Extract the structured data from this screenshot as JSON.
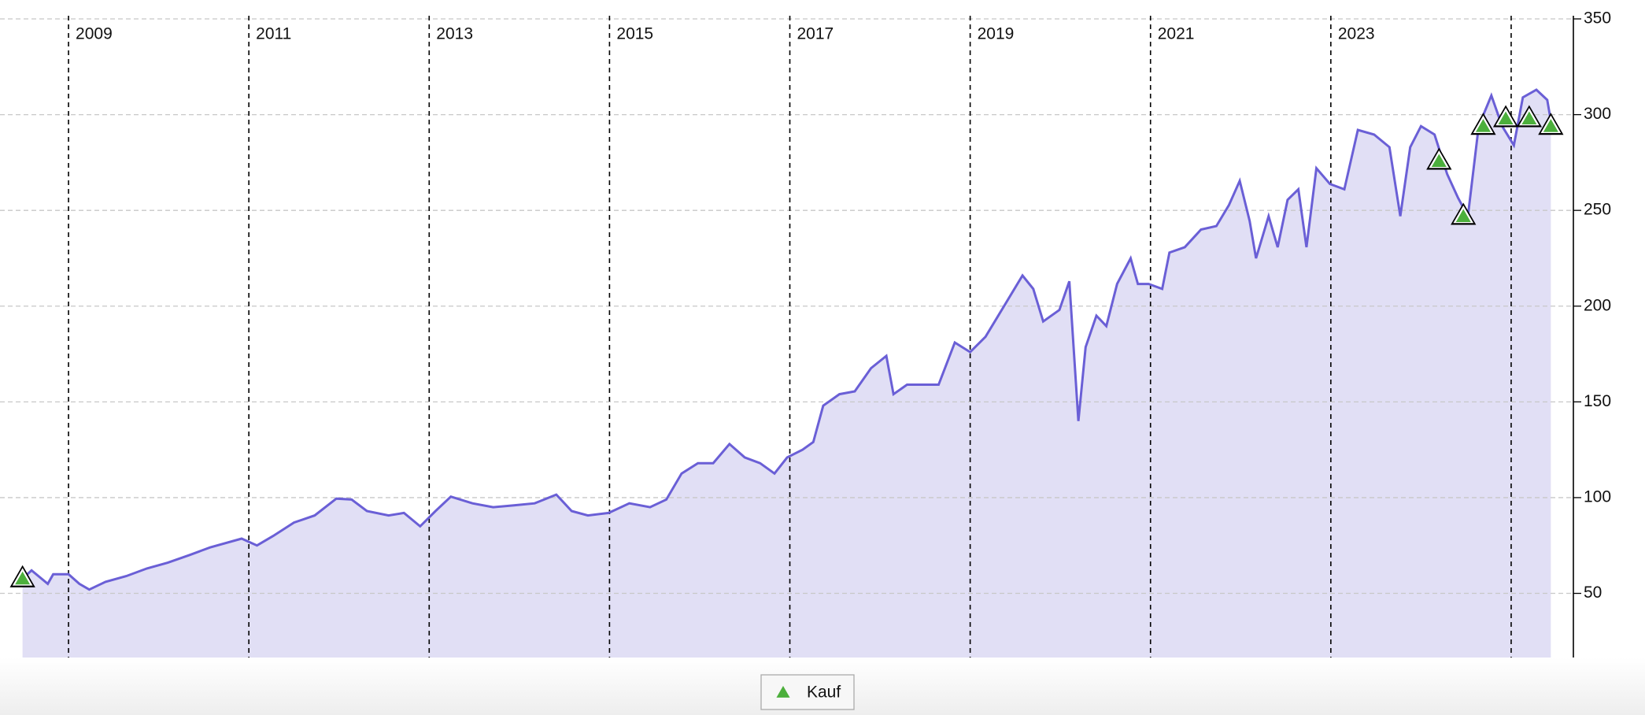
{
  "chart_data": {
    "type": "line",
    "xlim": [
      2008.24,
      2025.69
    ],
    "ylim": [
      16.5,
      350
    ],
    "yticks": [
      50,
      100,
      150,
      200,
      250,
      300,
      350
    ],
    "xticks": [
      2009,
      2011,
      2013,
      2015,
      2017,
      2019,
      2021,
      2023
    ],
    "xgrid": [
      2009,
      2011,
      2013,
      2015,
      2017,
      2019,
      2021,
      2023,
      2025
    ],
    "grid": true,
    "x": [
      2008.49,
      2008.59,
      2008.77,
      2008.83,
      2009.0,
      2009.12,
      2009.23,
      2009.41,
      2009.64,
      2009.87,
      2010.1,
      2010.34,
      2010.57,
      2010.92,
      2011.09,
      2011.27,
      2011.5,
      2011.73,
      2011.97,
      2012.14,
      2012.31,
      2012.55,
      2012.72,
      2012.9,
      2013.07,
      2013.24,
      2013.48,
      2013.71,
      2013.94,
      2014.17,
      2014.41,
      2014.58,
      2014.76,
      2014.99,
      2015.22,
      2015.45,
      2015.63,
      2015.8,
      2015.98,
      2016.15,
      2016.33,
      2016.5,
      2016.67,
      2016.83,
      2016.97,
      2017.14,
      2017.26,
      2017.37,
      2017.55,
      2017.72,
      2017.9,
      2018.07,
      2018.15,
      2018.3,
      2018.48,
      2018.65,
      2018.83,
      2019.0,
      2019.17,
      2019.35,
      2019.58,
      2019.7,
      2019.81,
      2019.99,
      2020.1,
      2020.2,
      2020.28,
      2020.4,
      2020.51,
      2020.63,
      2020.78,
      2020.86,
      2020.98,
      2021.13,
      2021.21,
      2021.38,
      2021.56,
      2021.73,
      2021.87,
      2021.99,
      2022.1,
      2022.17,
      2022.31,
      2022.41,
      2022.52,
      2022.64,
      2022.73,
      2022.84,
      2022.99,
      2023.15,
      2023.3,
      2023.48,
      2023.65,
      2023.77,
      2023.88,
      2024.0,
      2024.15,
      2024.29,
      2024.41,
      2024.52,
      2024.64,
      2024.78,
      2024.9,
      2025.03,
      2025.13,
      2025.28,
      2025.4,
      2025.44
    ],
    "series": [
      {
        "color": "#6a5fd6",
        "fill": "#e1dff5",
        "values": [
          57.7,
          62,
          55,
          60,
          60,
          55,
          52,
          56,
          59,
          63,
          66,
          70,
          74,
          78.6,
          75,
          80,
          87,
          90.7,
          99.5,
          99,
          93,
          90.7,
          92,
          85,
          93,
          100.5,
          97,
          95,
          96,
          97,
          101.6,
          93,
          90.7,
          92,
          97,
          95,
          99,
          112.6,
          118,
          118,
          128,
          121,
          118,
          112.6,
          121,
          125,
          129,
          148,
          154,
          155.5,
          167.6,
          174,
          154,
          159,
          159,
          159,
          181,
          176,
          184,
          198,
          216,
          209,
          192,
          198,
          213,
          140,
          178.6,
          195,
          189.6,
          211.6,
          225,
          211.6,
          211.6,
          209,
          228,
          230.8,
          240,
          241.8,
          252.8,
          265.4,
          244.5,
          225,
          247,
          230.8,
          255.5,
          261,
          230.8,
          272,
          263.8,
          261,
          292,
          289.6,
          283,
          247,
          283,
          294,
          289.6,
          269,
          256.6,
          247,
          294,
          310,
          294,
          284,
          309,
          313,
          307.7,
          296.7
        ]
      }
    ],
    "markers": {
      "name": "Kauf",
      "color": "#4caf3c",
      "x": [
        2008.49,
        2024.2,
        2024.47,
        2024.69,
        2024.94,
        2025.2,
        2025.44
      ],
      "values": [
        57.7,
        275.8,
        247,
        294,
        298,
        298,
        294
      ]
    }
  }
}
